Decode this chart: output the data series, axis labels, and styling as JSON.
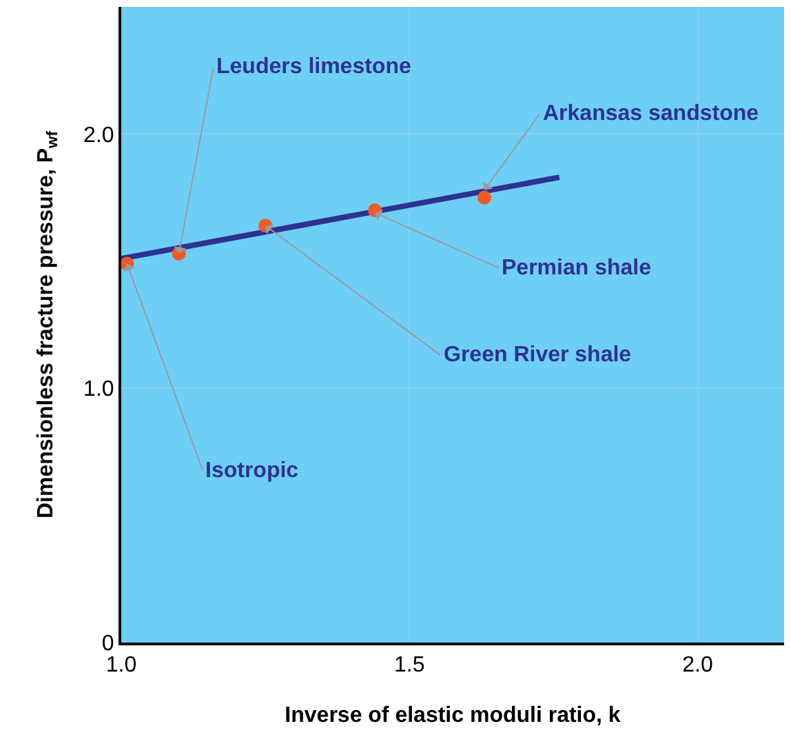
{
  "chart_data": {
    "type": "scatter",
    "xlabel": "Inverse of elastic moduli ratio, k",
    "ylabel": "Dimensionless fracture pressure, P$_{wf}$",
    "x": [
      1.01,
      1.1,
      1.25,
      1.44,
      1.63
    ],
    "series": [
      {
        "color": "#f15a24",
        "values": [
          1.49,
          1.53,
          1.64,
          1.7,
          1.75
        ],
        "marker": "circle"
      },
      {
        "type": "line",
        "color": "#2e3192",
        "x": [
          1.0,
          1.76
        ],
        "values": [
          1.51,
          1.83
        ],
        "marker": "none"
      }
    ],
    "xlim": [
      1.0,
      2.15
    ],
    "ylim": [
      0,
      2.5
    ],
    "xticks": [
      {
        "value": 1.0,
        "label": "1.0"
      },
      {
        "value": 1.5,
        "label": "1.5"
      },
      {
        "value": 2.0,
        "label": "2.0"
      }
    ],
    "yticks": [
      0,
      {
        "value": 1.0,
        "label": "1.0"
      },
      {
        "value": 2.0,
        "label": "2.0"
      }
    ],
    "grid": true,
    "annotations": [
      {
        "text": "Isotropic",
        "x": 1.01,
        "y": 1.49
      },
      {
        "text": "Leuders limestone",
        "x": 1.1,
        "y": 1.53
      },
      {
        "text": "Green River shale",
        "x": 1.25,
        "y": 1.64
      },
      {
        "text": "Permian shale",
        "x": 1.44,
        "y": 1.69
      },
      {
        "text": "Arkansas sandstone",
        "x": 1.63,
        "y": 1.78
      }
    ]
  }
}
